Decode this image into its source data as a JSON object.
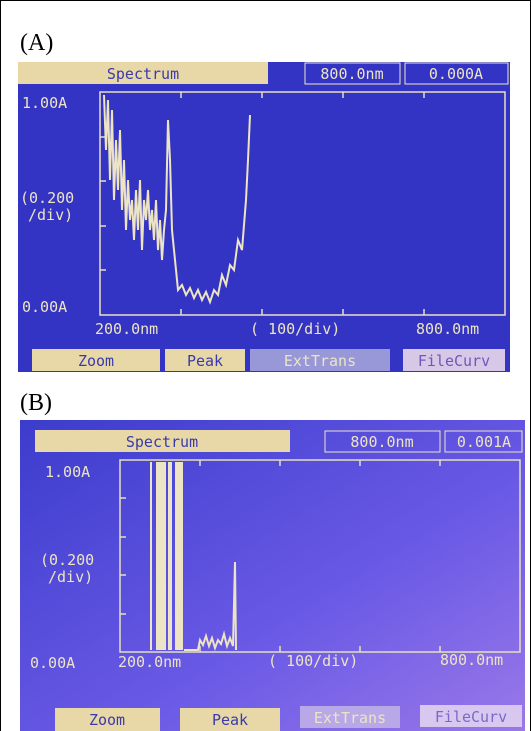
{
  "panels": [
    {
      "label": "(A)",
      "header": "Spectrum",
      "wavelength": "800.0nm",
      "absorbance": "0.000A",
      "y_top": "1.00A",
      "y_scale": [
        "(0.200",
        "/div)"
      ],
      "y_bottom": "0.00A",
      "x_left": "200.0nm",
      "x_scale": "( 100/div)",
      "x_right": "800.0nm",
      "buttons": [
        "Zoom",
        "Peak",
        "ExtTrans",
        "FileCurv"
      ]
    },
    {
      "label": "(B)",
      "header": "Spectrum",
      "wavelength": "800.0nm",
      "absorbance": "0.001A",
      "y_top": "1.00A",
      "y_scale": [
        "(0.200",
        "/div)"
      ],
      "y_bottom": "0.00A",
      "x_left": "200.0nm",
      "x_scale": "( 100/div)",
      "x_right": "800.0nm",
      "buttons": [
        "Zoom",
        "Peak",
        "ExtTrans",
        "FileCurv"
      ]
    }
  ]
}
